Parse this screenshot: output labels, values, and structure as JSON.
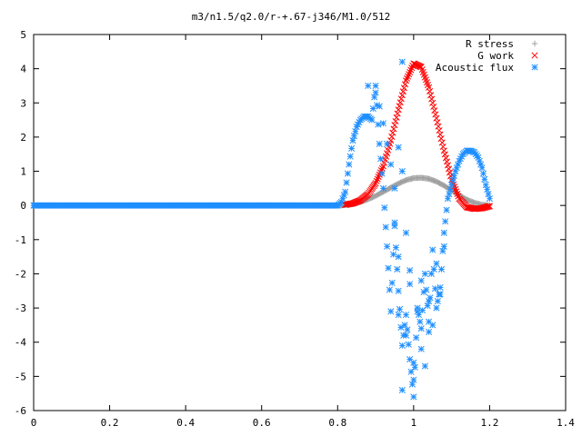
{
  "chart_data": {
    "type": "scatter",
    "title": "m3/n1.5/q2.0/r-+.67-j346/M1.0/512",
    "xlabel": "",
    "ylabel": "",
    "xlim": [
      0,
      1.4
    ],
    "ylim": [
      -6,
      5
    ],
    "x_ticks": [
      "0",
      "0.2",
      "0.4",
      "0.6",
      "0.8",
      "1",
      "1.2",
      "1.4"
    ],
    "y_ticks": [
      "5",
      "4",
      "3",
      "2",
      "1",
      "0",
      "-1",
      "-2",
      "-3",
      "-4",
      "-5",
      "-6"
    ],
    "grid": false,
    "legend_position": "top-right",
    "series": [
      {
        "name": "R stress",
        "marker": "plus",
        "color": "#a0a0a0",
        "x": [
          0.0,
          0.1,
          0.2,
          0.3,
          0.4,
          0.5,
          0.6,
          0.7,
          0.8,
          0.82,
          0.84,
          0.86,
          0.88,
          0.9,
          0.92,
          0.94,
          0.96,
          0.98,
          1.0,
          1.02,
          1.04,
          1.06,
          1.08,
          1.1,
          1.12,
          1.14,
          1.16,
          1.18,
          1.2
        ],
        "y": [
          0,
          0,
          0,
          0,
          0,
          0,
          0,
          0,
          0,
          0.01,
          0.04,
          0.1,
          0.18,
          0.28,
          0.4,
          0.52,
          0.64,
          0.74,
          0.8,
          0.81,
          0.78,
          0.7,
          0.58,
          0.44,
          0.3,
          0.17,
          0.08,
          0.02,
          0.0
        ]
      },
      {
        "name": "G work",
        "marker": "cross",
        "color": "#ff0000",
        "x": [
          0.82,
          0.84,
          0.86,
          0.88,
          0.9,
          0.92,
          0.94,
          0.96,
          0.98,
          1.0,
          1.02,
          1.04,
          1.06,
          1.08,
          1.1,
          1.12,
          1.14,
          1.16,
          1.18,
          1.2
        ],
        "y": [
          0.02,
          0.06,
          0.15,
          0.33,
          0.65,
          1.15,
          1.9,
          2.8,
          3.65,
          4.15,
          4.05,
          3.45,
          2.55,
          1.6,
          0.75,
          0.2,
          -0.05,
          -0.1,
          -0.08,
          -0.02
        ]
      },
      {
        "name": "Acoustic flux",
        "marker": "star",
        "color": "#1f8fff",
        "x": [
          0.0,
          0.1,
          0.2,
          0.3,
          0.4,
          0.5,
          0.6,
          0.7,
          0.8,
          0.81,
          0.82,
          0.83,
          0.84,
          0.85,
          0.86,
          0.87,
          0.88,
          0.89,
          0.9,
          0.91,
          0.92,
          0.93,
          0.94,
          0.95,
          0.96,
          0.97,
          0.98,
          0.99,
          1.0,
          1.01,
          1.02,
          1.03,
          1.04,
          1.05,
          1.06,
          1.07,
          1.08,
          1.09,
          1.1,
          1.11,
          1.12,
          1.13,
          1.14,
          1.15,
          1.16,
          1.17,
          1.18,
          1.19,
          1.2
        ],
        "y": [
          0,
          0,
          0,
          0,
          0,
          0,
          0,
          0,
          0,
          0.1,
          0.4,
          1.2,
          1.9,
          2.3,
          2.5,
          2.6,
          2.6,
          2.5,
          3.5,
          1.8,
          0.5,
          -1.2,
          -3.1,
          -0.6,
          -2.5,
          -4.1,
          -3.2,
          -4.5,
          -5.6,
          -3.0,
          -3.6,
          -2.0,
          -3.4,
          -1.3,
          -3.0,
          -2.4,
          -0.8,
          0.2,
          0.6,
          1.0,
          1.3,
          1.5,
          1.6,
          1.6,
          1.55,
          1.4,
          1.1,
          0.6,
          0.2
        ]
      }
    ],
    "scattered_points": [
      {
        "x": 0.88,
        "y": 3.5
      },
      {
        "x": 0.9,
        "y": 3.3
      },
      {
        "x": 0.91,
        "y": 2.9
      },
      {
        "x": 0.92,
        "y": 2.4
      },
      {
        "x": 0.93,
        "y": 1.8
      },
      {
        "x": 0.94,
        "y": 1.2
      },
      {
        "x": 0.95,
        "y": 0.5
      },
      {
        "x": 0.95,
        "y": -0.5
      },
      {
        "x": 0.96,
        "y": -1.5
      },
      {
        "x": 0.96,
        "y": -3.2
      },
      {
        "x": 0.97,
        "y": -5.4
      },
      {
        "x": 0.98,
        "y": -3.8
      },
      {
        "x": 0.99,
        "y": -2.3
      },
      {
        "x": 1.0,
        "y": -4.6
      },
      {
        "x": 1.0,
        "y": -5.1
      },
      {
        "x": 1.01,
        "y": -3.1
      },
      {
        "x": 1.02,
        "y": -4.2
      },
      {
        "x": 1.03,
        "y": -4.7
      },
      {
        "x": 1.04,
        "y": -2.8
      },
      {
        "x": 1.05,
        "y": -3.5
      },
      {
        "x": 1.06,
        "y": -1.7
      },
      {
        "x": 1.07,
        "y": -2.6
      },
      {
        "x": 0.97,
        "y": 4.2
      },
      {
        "x": 0.96,
        "y": 1.7
      },
      {
        "x": 0.97,
        "y": 1.0
      },
      {
        "x": 0.98,
        "y": -0.8
      },
      {
        "x": 0.99,
        "y": -1.9
      },
      {
        "x": 1.02,
        "y": -2.2
      },
      {
        "x": 1.04,
        "y": -3.7
      },
      {
        "x": 1.08,
        "y": -1.2
      }
    ]
  }
}
